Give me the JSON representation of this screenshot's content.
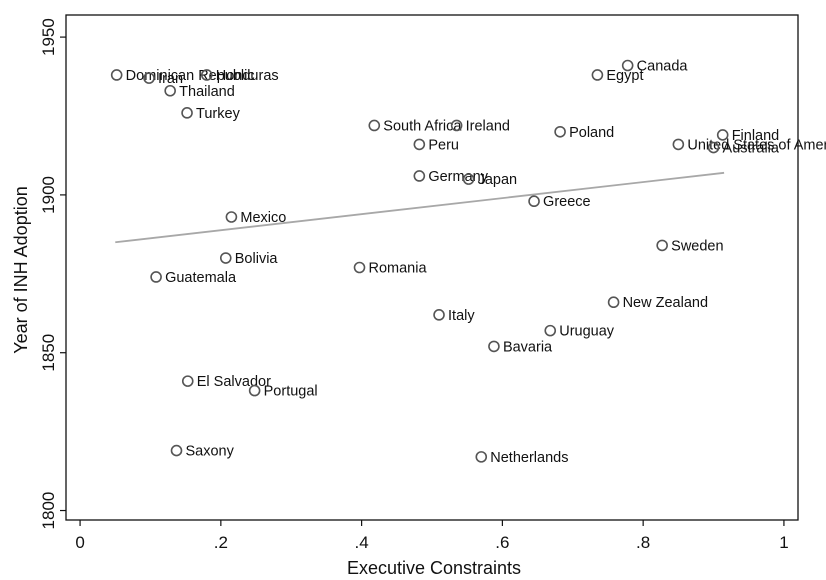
{
  "chart_data": {
    "type": "scatter",
    "xlabel": "Executive Constraints",
    "ylabel": "Year of INH Adoption",
    "xlim": [
      -0.02,
      1.02
    ],
    "ylim": [
      1797,
      1957
    ],
    "xticks": [
      0,
      0.2,
      0.4,
      0.6,
      0.8,
      1
    ],
    "xtick_labels": [
      "0",
      ".2",
      ".4",
      ".6",
      ".8",
      "1"
    ],
    "yticks": [
      1800,
      1850,
      1900,
      1950
    ],
    "ytick_labels": [
      "1800",
      "1850",
      "1900",
      "1950"
    ],
    "grid": false,
    "legend": "none",
    "marker_color": "#555555",
    "fit_color": "#a8a8a8",
    "fit_line": {
      "x": [
        0.05,
        0.915
      ],
      "y": [
        1885,
        1907
      ]
    },
    "points": [
      {
        "label": "Dominican Republic",
        "x": 0.052,
        "y": 1938
      },
      {
        "label": "Iran",
        "x": 0.098,
        "y": 1937
      },
      {
        "label": "Honduras",
        "x": 0.18,
        "y": 1938
      },
      {
        "label": "Thailand",
        "x": 0.128,
        "y": 1933
      },
      {
        "label": "Turkey",
        "x": 0.152,
        "y": 1926
      },
      {
        "label": "South Africa",
        "x": 0.418,
        "y": 1922
      },
      {
        "label": "Ireland",
        "x": 0.535,
        "y": 1922
      },
      {
        "label": "Peru",
        "x": 0.482,
        "y": 1916
      },
      {
        "label": "Germany",
        "x": 0.482,
        "y": 1906
      },
      {
        "label": "Japan",
        "x": 0.552,
        "y": 1905
      },
      {
        "label": "Egypt",
        "x": 0.735,
        "y": 1938
      },
      {
        "label": "Canada",
        "x": 0.778,
        "y": 1941
      },
      {
        "label": "Poland",
        "x": 0.682,
        "y": 1920
      },
      {
        "label": "Finland",
        "x": 0.913,
        "y": 1919
      },
      {
        "label": "United States of America",
        "x": 0.85,
        "y": 1916
      },
      {
        "label": "Australia",
        "x": 0.9,
        "y": 1915
      },
      {
        "label": "Greece",
        "x": 0.645,
        "y": 1898
      },
      {
        "label": "Mexico",
        "x": 0.215,
        "y": 1893
      },
      {
        "label": "Bolivia",
        "x": 0.207,
        "y": 1880
      },
      {
        "label": "Sweden",
        "x": 0.827,
        "y": 1884
      },
      {
        "label": "Romania",
        "x": 0.397,
        "y": 1877
      },
      {
        "label": "Guatemala",
        "x": 0.108,
        "y": 1874
      },
      {
        "label": "New Zealand",
        "x": 0.758,
        "y": 1866
      },
      {
        "label": "Italy",
        "x": 0.51,
        "y": 1862
      },
      {
        "label": "Uruguay",
        "x": 0.668,
        "y": 1857
      },
      {
        "label": "Bavaria",
        "x": 0.588,
        "y": 1852
      },
      {
        "label": "El Salvador",
        "x": 0.153,
        "y": 1841
      },
      {
        "label": "Portugal",
        "x": 0.248,
        "y": 1838
      },
      {
        "label": "Saxony",
        "x": 0.137,
        "y": 1819
      },
      {
        "label": "Netherlands",
        "x": 0.57,
        "y": 1817
      }
    ]
  }
}
